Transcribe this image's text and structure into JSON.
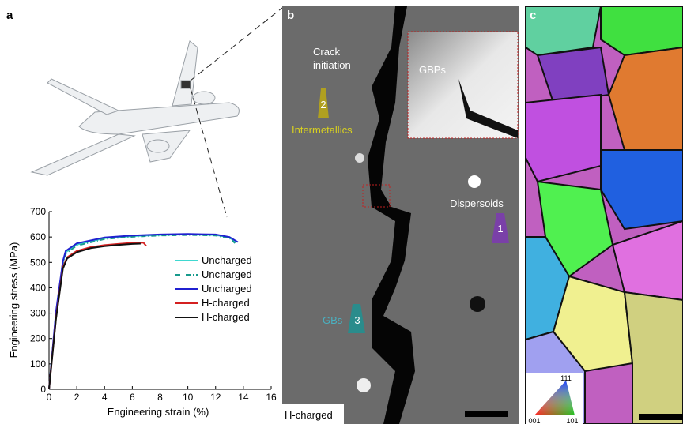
{
  "panels": {
    "a": "a",
    "b": "b",
    "c": "c"
  },
  "chart_data": {
    "type": "line",
    "xlabel": "Engineering strain (%)",
    "ylabel": "Engineering stress (MPa)",
    "xlim": [
      0,
      16
    ],
    "xticks": [
      0,
      2,
      4,
      6,
      8,
      10,
      12,
      14,
      16
    ],
    "ylim": [
      0,
      700
    ],
    "yticks": [
      0,
      100,
      200,
      300,
      400,
      500,
      600,
      700
    ],
    "series": [
      {
        "name": "Uncharged",
        "color": "#3fd8d0",
        "linestyle": "solid",
        "x": [
          0,
          0.5,
          1,
          1.2,
          2,
          4,
          6,
          8,
          10,
          12,
          13,
          13.5
        ],
        "values": [
          0,
          300,
          500,
          540,
          570,
          595,
          603,
          608,
          610,
          608,
          598,
          578
        ]
      },
      {
        "name": "Uncharged",
        "color": "#179a8c",
        "linestyle": "dashdot",
        "x": [
          0,
          0.5,
          1,
          1.2,
          2,
          4,
          6,
          8,
          10,
          12,
          13,
          13.4
        ],
        "values": [
          0,
          295,
          495,
          535,
          566,
          592,
          601,
          606,
          608,
          606,
          596,
          576
        ]
      },
      {
        "name": "Uncharged",
        "color": "#2020d0",
        "linestyle": "solid",
        "x": [
          0,
          0.5,
          1,
          1.2,
          2,
          4,
          6,
          8,
          10,
          12,
          13,
          13.6
        ],
        "values": [
          0,
          305,
          505,
          545,
          575,
          598,
          606,
          610,
          612,
          610,
          600,
          580
        ]
      },
      {
        "name": "H-charged",
        "color": "#d42020",
        "linestyle": "solid",
        "x": [
          0,
          0.5,
          1,
          1.3,
          2,
          3,
          4,
          5,
          6,
          6.8,
          7
        ],
        "values": [
          0,
          280,
          480,
          520,
          545,
          560,
          568,
          573,
          577,
          578,
          565
        ]
      },
      {
        "name": "H-charged",
        "color": "#111111",
        "linestyle": "solid",
        "x": [
          0,
          0.5,
          1,
          1.3,
          2,
          3,
          4,
          5,
          6,
          6.6
        ],
        "values": [
          0,
          275,
          475,
          515,
          540,
          556,
          564,
          569,
          573,
          574
        ]
      }
    ]
  },
  "micrograph": {
    "crack": [
      "Crack",
      "initiation"
    ],
    "gbps": "GBPs",
    "intermetallics": "Intermetallics",
    "marker2": "2",
    "dispersoids": "Dispersoids",
    "marker1": "1",
    "gbs": "GBs",
    "marker3": "3",
    "condition": "H-charged"
  },
  "ebsd_key": {
    "top": "111",
    "left": "001",
    "right": "101"
  }
}
